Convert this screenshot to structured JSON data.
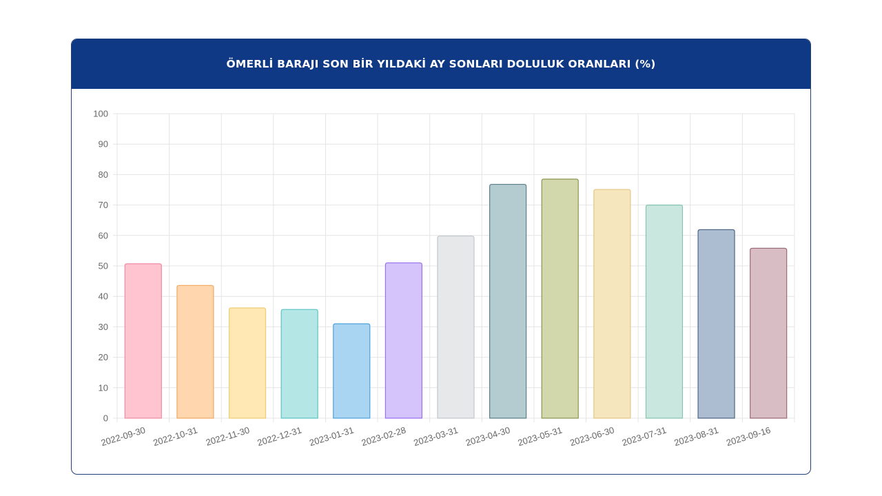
{
  "title": "ÖMERLİ BARAJI SON BİR YILDAKİ AY SONLARI DOLULUK ORANLARI (%)",
  "chart_data": {
    "type": "bar",
    "title": "ÖMERLİ BARAJI SON BİR YILDAKİ AY SONLARI DOLULUK ORANLARI (%)",
    "xlabel": "",
    "ylabel": "",
    "ylim": [
      0,
      100
    ],
    "yticks": [
      0,
      10,
      20,
      30,
      40,
      50,
      60,
      70,
      80,
      90,
      100
    ],
    "grid": true,
    "legend": "none",
    "categories": [
      "2022-09-30",
      "2022-10-31",
      "2022-11-30",
      "2022-12-31",
      "2023-01-31",
      "2023-02-28",
      "2023-03-31",
      "2023-04-30",
      "2023-05-31",
      "2023-06-30",
      "2023-07-31",
      "2023-08-31",
      "2023-09-16"
    ],
    "values": [
      50.7,
      43.6,
      36.2,
      35.7,
      31.0,
      51.0,
      59.8,
      76.8,
      78.5,
      75.1,
      70.0,
      61.9,
      55.8
    ],
    "fills": [
      "#ffc4d0",
      "#ffd6ad",
      "#ffe8b4",
      "#b4e6e6",
      "#a9d5f3",
      "#d5c4fb",
      "#e7e8ea",
      "#b4cbd0",
      "#d2d8ab",
      "#f6e6bd",
      "#c9e7de",
      "#adbdd1",
      "#d9bdc4"
    ],
    "strokes": [
      "#f08aa3",
      "#f0a862",
      "#f0cc70",
      "#5cc2c2",
      "#4da2dc",
      "#9a70f0",
      "#c3c6ca",
      "#5e7f88",
      "#8c9550",
      "#e2c785",
      "#86c4b1",
      "#4e6685",
      "#9c6b78"
    ]
  }
}
